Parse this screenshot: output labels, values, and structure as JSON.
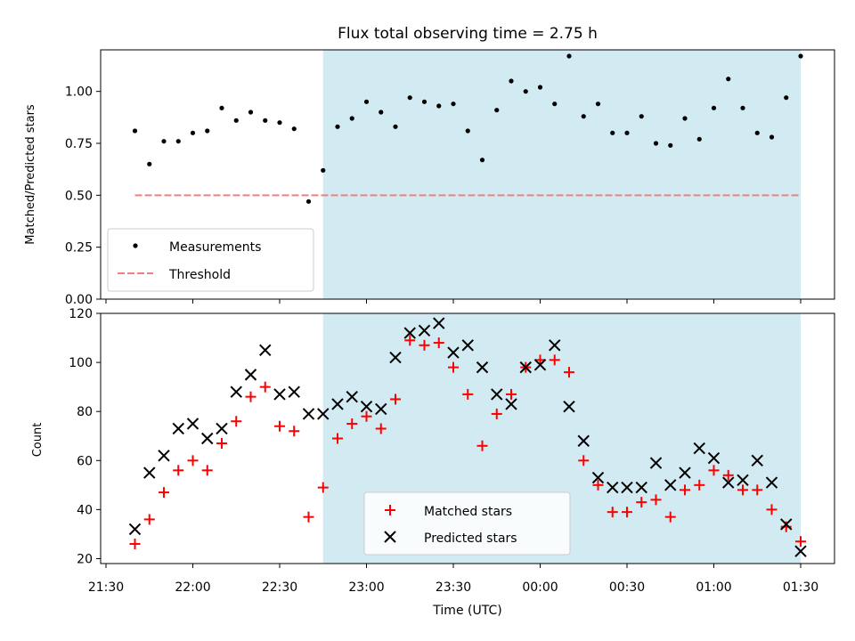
{
  "chart_data": [
    {
      "type": "scatter",
      "title": "Flux total observing time = 2.75 h",
      "ylabel": "Matched/Predicted stars",
      "xlabel": "",
      "ylim": [
        0,
        1.2
      ],
      "yticks": [
        "0.00",
        "0.25",
        "0.50",
        "0.75",
        "1.00"
      ],
      "ytick_values": [
        0,
        0.25,
        0.5,
        0.75,
        1.0
      ],
      "shaded_region": {
        "from": "22:45",
        "to": "01:30",
        "color": "#add8e6"
      },
      "legend_position": "lower-left",
      "series": [
        {
          "name": "Measurements",
          "marker": "dot",
          "color": "#000000",
          "x": [
            "21:40",
            "21:45",
            "21:50",
            "21:55",
            "22:00",
            "22:05",
            "22:10",
            "22:15",
            "22:20",
            "22:25",
            "22:30",
            "22:35",
            "22:40",
            "22:45",
            "22:50",
            "22:55",
            "23:00",
            "23:05",
            "23:10",
            "23:15",
            "23:20",
            "23:25",
            "23:30",
            "23:35",
            "23:40",
            "23:45",
            "23:50",
            "23:55",
            "00:00",
            "00:05",
            "00:10",
            "00:15",
            "00:20",
            "00:25",
            "00:30",
            "00:35",
            "00:40",
            "00:45",
            "00:50",
            "00:55",
            "01:00",
            "01:05",
            "01:10",
            "01:15",
            "01:20",
            "01:25",
            "01:30"
          ],
          "values": [
            0.81,
            0.65,
            0.76,
            0.76,
            0.8,
            0.81,
            0.92,
            0.86,
            0.9,
            0.86,
            0.85,
            0.82,
            0.47,
            0.62,
            0.83,
            0.87,
            0.95,
            0.9,
            0.83,
            0.97,
            0.95,
            0.93,
            0.94,
            0.81,
            0.67,
            0.91,
            1.05,
            1.0,
            1.02,
            0.94,
            1.17,
            0.88,
            0.94,
            0.8,
            0.8,
            0.88,
            0.75,
            0.74,
            0.87,
            0.77,
            0.92,
            1.06,
            0.92,
            0.8,
            0.78,
            0.97,
            1.17
          ]
        },
        {
          "name": "Threshold",
          "style": "dashed",
          "color": "#f08080",
          "x": [
            "21:40",
            "01:30"
          ],
          "values": [
            0.5,
            0.5
          ]
        }
      ]
    },
    {
      "type": "scatter",
      "title": "",
      "ylabel": "Count",
      "xlabel": "Time (UTC)",
      "ylim": [
        18,
        120
      ],
      "yticks": [
        "20",
        "40",
        "60",
        "80",
        "100",
        "120"
      ],
      "ytick_values": [
        20,
        40,
        60,
        80,
        100,
        120
      ],
      "xticks": [
        "21:30",
        "22:00",
        "22:30",
        "23:00",
        "23:30",
        "00:00",
        "00:30",
        "01:00",
        "01:30"
      ],
      "shaded_region": {
        "from": "22:45",
        "to": "01:30",
        "color": "#add8e6"
      },
      "legend_position": "lower-center",
      "x": [
        "21:40",
        "21:45",
        "21:50",
        "21:55",
        "22:00",
        "22:05",
        "22:10",
        "22:15",
        "22:20",
        "22:25",
        "22:30",
        "22:35",
        "22:40",
        "22:45",
        "22:50",
        "22:55",
        "23:00",
        "23:05",
        "23:10",
        "23:15",
        "23:20",
        "23:25",
        "23:30",
        "23:35",
        "23:40",
        "23:45",
        "23:50",
        "23:55",
        "00:00",
        "00:05",
        "00:10",
        "00:15",
        "00:20",
        "00:25",
        "00:30",
        "00:35",
        "00:40",
        "00:45",
        "00:50",
        "00:55",
        "01:00",
        "01:05",
        "01:10",
        "01:15",
        "01:20",
        "01:25",
        "01:30"
      ],
      "series": [
        {
          "name": "Matched stars",
          "marker": "plus",
          "color": "#ff0000",
          "values": [
            26,
            36,
            47,
            56,
            60,
            56,
            67,
            76,
            86,
            90,
            74,
            72,
            37,
            49,
            69,
            75,
            78,
            73,
            85,
            109,
            107,
            108,
            98,
            87,
            66,
            79,
            87,
            98,
            101,
            101,
            96,
            60,
            50,
            39,
            39,
            43,
            44,
            37,
            48,
            50,
            56,
            54,
            48,
            48,
            40,
            33,
            27
          ]
        },
        {
          "name": "Predicted stars",
          "marker": "x",
          "color": "#000000",
          "values": [
            32,
            55,
            62,
            73,
            75,
            69,
            73,
            88,
            95,
            105,
            87,
            88,
            79,
            79,
            83,
            86,
            82,
            81,
            102,
            112,
            113,
            116,
            104,
            107,
            98,
            87,
            83,
            98,
            99,
            107,
            82,
            68,
            53,
            49,
            49,
            49,
            59,
            50,
            55,
            65,
            61,
            51,
            52,
            60,
            51,
            34,
            23
          ]
        }
      ]
    }
  ]
}
